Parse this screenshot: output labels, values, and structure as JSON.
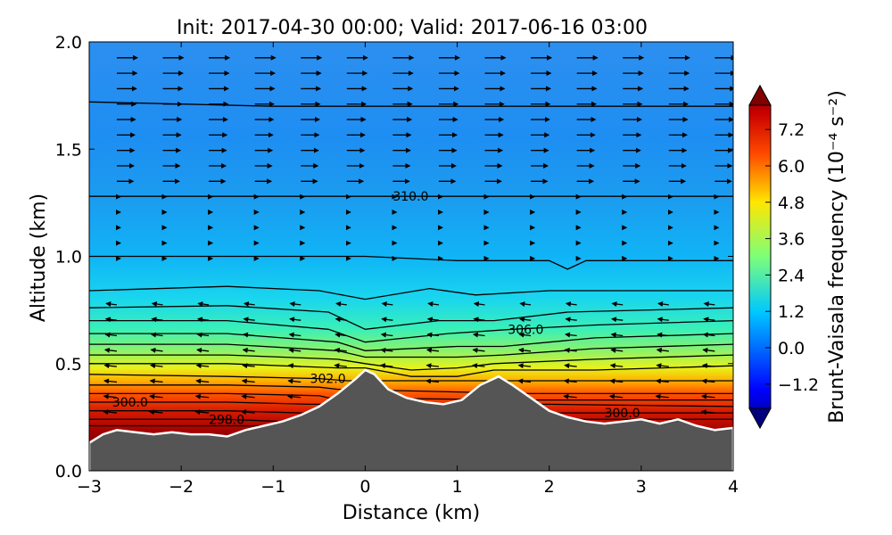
{
  "title": "Init: 2017-04-30 00:00; Valid: 2017-06-16 03:00",
  "chart_data": {
    "type": "heatmap",
    "title": "Init: 2017-04-30 00:00; Valid: 2017-06-16 03:00",
    "xlabel": "Distance (km)",
    "ylabel": "Altitude (km)",
    "xlim": [
      -3,
      4
    ],
    "ylim": [
      0.0,
      2.0
    ],
    "x_ticks": [
      "−3",
      "−2",
      "−1",
      "0",
      "1",
      "2",
      "3",
      "4"
    ],
    "y_ticks": [
      "0.0",
      "0.5",
      "1.0",
      "1.5",
      "2.0"
    ],
    "colorbar": {
      "label": "Brunt-Vaisala frequency (10⁻⁴ s⁻²)",
      "range": [
        -2.0,
        8.0
      ],
      "ticks": [
        "−1.2",
        "0.0",
        "1.2",
        "2.4",
        "3.6",
        "4.8",
        "6.0",
        "7.2"
      ],
      "extend": "both",
      "colormap": "jet"
    },
    "n2_profile_approx": [
      {
        "altitude_km": 0.3,
        "value": 8.0
      },
      {
        "altitude_km": 0.4,
        "value": 7.0
      },
      {
        "altitude_km": 0.48,
        "value": 5.5
      },
      {
        "altitude_km": 0.55,
        "value": 4.2
      },
      {
        "altitude_km": 0.65,
        "value": 3.2
      },
      {
        "altitude_km": 0.8,
        "value": 2.4
      },
      {
        "altitude_km": 1.0,
        "value": 1.7
      },
      {
        "altitude_km": 1.3,
        "value": 1.2
      },
      {
        "altitude_km": 1.7,
        "value": 0.9
      },
      {
        "altitude_km": 2.0,
        "value": 0.7
      }
    ],
    "terrain": [
      {
        "x": -3.0,
        "z": 0.13
      },
      {
        "x": -2.85,
        "z": 0.17
      },
      {
        "x": -2.7,
        "z": 0.19
      },
      {
        "x": -2.5,
        "z": 0.18
      },
      {
        "x": -2.3,
        "z": 0.17
      },
      {
        "x": -2.1,
        "z": 0.18
      },
      {
        "x": -1.9,
        "z": 0.17
      },
      {
        "x": -1.7,
        "z": 0.17
      },
      {
        "x": -1.5,
        "z": 0.16
      },
      {
        "x": -1.3,
        "z": 0.19
      },
      {
        "x": -1.1,
        "z": 0.21
      },
      {
        "x": -0.9,
        "z": 0.23
      },
      {
        "x": -0.7,
        "z": 0.26
      },
      {
        "x": -0.5,
        "z": 0.3
      },
      {
        "x": -0.3,
        "z": 0.36
      },
      {
        "x": -0.1,
        "z": 0.43
      },
      {
        "x": 0.0,
        "z": 0.47
      },
      {
        "x": 0.1,
        "z": 0.45
      },
      {
        "x": 0.25,
        "z": 0.38
      },
      {
        "x": 0.45,
        "z": 0.34
      },
      {
        "x": 0.65,
        "z": 0.32
      },
      {
        "x": 0.85,
        "z": 0.31
      },
      {
        "x": 1.05,
        "z": 0.33
      },
      {
        "x": 1.25,
        "z": 0.4
      },
      {
        "x": 1.45,
        "z": 0.44
      },
      {
        "x": 1.6,
        "z": 0.4
      },
      {
        "x": 1.8,
        "z": 0.34
      },
      {
        "x": 2.0,
        "z": 0.28
      },
      {
        "x": 2.2,
        "z": 0.25
      },
      {
        "x": 2.4,
        "z": 0.23
      },
      {
        "x": 2.6,
        "z": 0.22
      },
      {
        "x": 2.8,
        "z": 0.23
      },
      {
        "x": 3.0,
        "z": 0.24
      },
      {
        "x": 3.2,
        "z": 0.22
      },
      {
        "x": 3.4,
        "z": 0.24
      },
      {
        "x": 3.6,
        "z": 0.21
      },
      {
        "x": 3.8,
        "z": 0.19
      },
      {
        "x": 4.0,
        "z": 0.2
      }
    ],
    "theta_contours": [
      {
        "label": "310.0",
        "label_x": 0.3,
        "points": [
          [
            -3,
            1.28
          ],
          [
            -1,
            1.28
          ],
          [
            0,
            1.28
          ],
          [
            1,
            1.28
          ],
          [
            2,
            1.28
          ],
          [
            3,
            1.28
          ],
          [
            4,
            1.28
          ]
        ]
      },
      {
        "points": [
          [
            -3,
            1.72
          ],
          [
            -2,
            1.71
          ],
          [
            -1,
            1.7
          ],
          [
            0,
            1.7
          ],
          [
            1,
            1.7
          ],
          [
            2,
            1.7
          ],
          [
            3,
            1.7
          ],
          [
            4,
            1.7
          ]
        ]
      },
      {
        "points": [
          [
            -3,
            1.0
          ],
          [
            -2,
            1.0
          ],
          [
            -1,
            1.0
          ],
          [
            0,
            1.0
          ],
          [
            1,
            0.98
          ],
          [
            2,
            0.98
          ],
          [
            2.2,
            0.94
          ],
          [
            2.4,
            0.98
          ],
          [
            4,
            0.98
          ]
        ]
      },
      {
        "points": [
          [
            -3,
            0.84
          ],
          [
            -1.5,
            0.86
          ],
          [
            -0.5,
            0.84
          ],
          [
            0,
            0.8
          ],
          [
            0.7,
            0.85
          ],
          [
            1.2,
            0.82
          ],
          [
            2,
            0.84
          ],
          [
            4,
            0.84
          ]
        ]
      },
      {
        "points": [
          [
            -3,
            0.76
          ],
          [
            -1.5,
            0.77
          ],
          [
            -0.4,
            0.74
          ],
          [
            0,
            0.66
          ],
          [
            0.8,
            0.7
          ],
          [
            1.4,
            0.7
          ],
          [
            2.2,
            0.74
          ],
          [
            4,
            0.76
          ]
        ]
      },
      {
        "label": "306.0",
        "label_x": 1.55,
        "points": [
          [
            -3,
            0.7
          ],
          [
            -1.5,
            0.7
          ],
          [
            -0.4,
            0.66
          ],
          [
            0,
            0.6
          ],
          [
            0.9,
            0.64
          ],
          [
            1.6,
            0.66
          ],
          [
            2.5,
            0.68
          ],
          [
            4,
            0.7
          ]
        ]
      },
      {
        "points": [
          [
            -3,
            0.64
          ],
          [
            -1.5,
            0.64
          ],
          [
            -0.3,
            0.6
          ],
          [
            0,
            0.56
          ],
          [
            1.0,
            0.58
          ],
          [
            1.5,
            0.58
          ],
          [
            2.5,
            0.62
          ],
          [
            4,
            0.64
          ]
        ]
      },
      {
        "points": [
          [
            -3,
            0.59
          ],
          [
            -1.5,
            0.59
          ],
          [
            -0.3,
            0.56
          ],
          [
            0,
            0.53
          ],
          [
            1.0,
            0.53
          ],
          [
            1.5,
            0.54
          ],
          [
            2.5,
            0.57
          ],
          [
            4,
            0.59
          ]
        ]
      },
      {
        "points": [
          [
            -3,
            0.54
          ],
          [
            -1.5,
            0.54
          ],
          [
            -0.3,
            0.52
          ],
          [
            0,
            0.5
          ],
          [
            0.5,
            0.47
          ],
          [
            1.0,
            0.48
          ],
          [
            1.4,
            0.5
          ],
          [
            2.5,
            0.52
          ],
          [
            4,
            0.54
          ]
        ]
      },
      {
        "points": [
          [
            -3,
            0.5
          ],
          [
            -1.5,
            0.5
          ],
          [
            -0.3,
            0.48
          ],
          [
            0,
            0.48
          ],
          [
            0.5,
            0.44
          ],
          [
            1.0,
            0.44
          ],
          [
            1.4,
            0.47
          ],
          [
            2.5,
            0.47
          ],
          [
            4,
            0.49
          ]
        ]
      },
      {
        "label": "302.0",
        "label_x": -0.6,
        "points": [
          [
            -3,
            0.45
          ],
          [
            -1.5,
            0.44
          ],
          [
            -0.5,
            0.43
          ],
          [
            -0.2,
            0.42
          ],
          [
            2.0,
            0.42
          ],
          [
            4,
            0.42
          ]
        ]
      },
      {
        "points": [
          [
            -3,
            0.4
          ],
          [
            -1.5,
            0.4
          ],
          [
            -0.5,
            0.39
          ],
          [
            -0.3,
            0.38
          ],
          [
            1.8,
            0.36
          ],
          [
            4,
            0.36
          ]
        ]
      },
      {
        "points": [
          [
            -3,
            0.36
          ],
          [
            -1.5,
            0.36
          ],
          [
            -0.5,
            0.35
          ],
          [
            -0.4,
            0.34
          ],
          [
            1.9,
            0.33
          ],
          [
            4,
            0.33
          ]
        ]
      },
      {
        "label": "300.0",
        "label_x": -2.75,
        "points": [
          [
            -3,
            0.32
          ],
          [
            -1.5,
            0.32
          ],
          [
            -0.6,
            0.31
          ],
          [
            2.0,
            0.31
          ],
          [
            4,
            0.3
          ]
        ]
      },
      {
        "points": [
          [
            -3,
            0.28
          ],
          [
            -1.5,
            0.28
          ],
          [
            -0.7,
            0.27
          ],
          [
            2.1,
            0.27
          ],
          [
            4,
            0.27
          ]
        ]
      },
      {
        "label": "298.0",
        "label_x": -1.7,
        "points": [
          [
            -3,
            0.24
          ],
          [
            -1.5,
            0.24
          ],
          [
            -0.9,
            0.23
          ],
          [
            2.3,
            0.24
          ],
          [
            4,
            0.24
          ]
        ]
      },
      {
        "points": [
          [
            -3,
            0.21
          ],
          [
            -1.5,
            0.21
          ],
          [
            -1.1,
            0.21
          ]
        ]
      }
    ],
    "right_contour_label": {
      "label": "300.0",
      "x": 2.6,
      "z": 0.27
    },
    "wind_field_note": "eastward arrows aloft (z > 1.3 km), near-zero winds at mid-levels, westward arrows in 0.4–0.8 km layer"
  }
}
